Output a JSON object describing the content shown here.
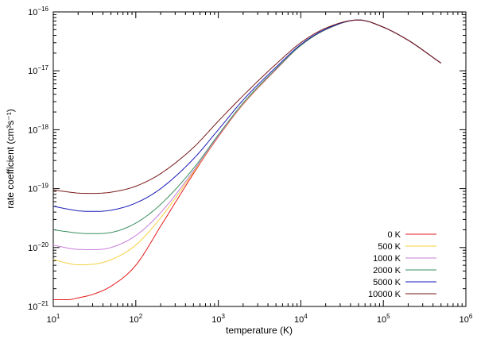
{
  "chart_data": {
    "type": "line",
    "xscale": "log",
    "yscale": "log",
    "xlabel": "temperature (K)",
    "ylabel": "rate coefficient (cm³s⁻¹)",
    "xlim": [
      10,
      1000000
    ],
    "ylim": [
      1e-21,
      1e-16
    ],
    "grid": false,
    "legend_position": "bottom-right",
    "x_ticks": [
      {
        "base": "10",
        "exp": "1"
      },
      {
        "base": "10",
        "exp": "2"
      },
      {
        "base": "10",
        "exp": "3"
      },
      {
        "base": "10",
        "exp": "4"
      },
      {
        "base": "10",
        "exp": "5"
      },
      {
        "base": "10",
        "exp": "6"
      }
    ],
    "y_ticks": [
      {
        "base": "10",
        "exp": "−21"
      },
      {
        "base": "10",
        "exp": "−20"
      },
      {
        "base": "10",
        "exp": "−19"
      },
      {
        "base": "10",
        "exp": "−18"
      },
      {
        "base": "10",
        "exp": "−17"
      },
      {
        "base": "10",
        "exp": "−16"
      }
    ],
    "x": [
      10,
      15,
      20,
      30,
      50,
      100,
      200,
      500,
      1000,
      2000,
      5000,
      10000,
      20000,
      50000,
      100000,
      200000,
      500000
    ],
    "series": [
      {
        "name": "0 K",
        "color": "#e41a1c",
        "values": [
          1.3e-21,
          1.3e-21,
          1.4e-21,
          1.6e-21,
          2.2e-21,
          5e-21,
          2.3e-20,
          1.8e-19,
          7.6e-19,
          2.7e-18,
          1.05e-17,
          2.7e-17,
          5e-17,
          7.3e-17,
          5.5e-17,
          3.3e-17,
          1.35e-17
        ]
      },
      {
        "name": "500 K",
        "color": "#f4d03f",
        "values": [
          6.3e-21,
          5.4e-21,
          5.1e-21,
          5.2e-21,
          6.2e-21,
          1.1e-20,
          3.2e-20,
          1.9e-19,
          7.8e-19,
          2.75e-18,
          1.07e-17,
          2.7e-17,
          5e-17,
          7.3e-17,
          5.5e-17,
          3.3e-17,
          1.35e-17
        ]
      },
      {
        "name": "1000 K",
        "color": "#c77ddb",
        "values": [
          1.1e-20,
          9.8e-21,
          9.3e-21,
          9.2e-21,
          1e-20,
          1.6e-20,
          3.9e-20,
          2e-19,
          7.9e-19,
          2.8e-18,
          1.07e-17,
          2.7e-17,
          5e-17,
          7.3e-17,
          5.5e-17,
          3.3e-17,
          1.35e-17
        ]
      },
      {
        "name": "2000 K",
        "color": "#3a8f5f",
        "values": [
          2e-20,
          1.85e-20,
          1.76e-20,
          1.72e-20,
          1.8e-20,
          2.6e-20,
          5.4e-20,
          2.2e-19,
          8.2e-19,
          2.85e-18,
          1.08e-17,
          2.7e-17,
          5e-17,
          7.3e-17,
          5.5e-17,
          3.3e-17,
          1.35e-17
        ]
      },
      {
        "name": "5000 K",
        "color": "#1a1ab8",
        "values": [
          5e-20,
          4.5e-20,
          4.2e-20,
          4.1e-20,
          4.3e-20,
          5.7e-20,
          1e-19,
          3.2e-19,
          1e-18,
          3.2e-18,
          1.15e-17,
          2.8e-17,
          5.1e-17,
          7.3e-17,
          5.5e-17,
          3.3e-17,
          1.35e-17
        ]
      },
      {
        "name": "10000 K",
        "color": "#7a1a1a",
        "values": [
          9.5e-20,
          8.8e-20,
          8.4e-20,
          8.3e-20,
          8.7e-20,
          1.1e-19,
          1.8e-19,
          5e-19,
          1.4e-18,
          3.8e-18,
          1.3e-17,
          3e-17,
          5.3e-17,
          7.3e-17,
          5.5e-17,
          3.3e-17,
          1.35e-17
        ]
      }
    ]
  }
}
